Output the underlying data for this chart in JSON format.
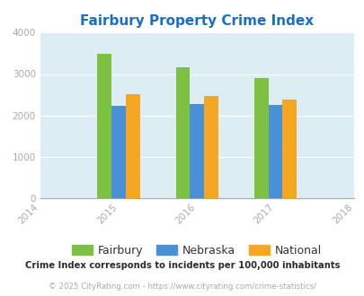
{
  "title": "Fairbury Property Crime Index",
  "years": [
    2015,
    2016,
    2017
  ],
  "fairbury": [
    3490,
    3160,
    2910
  ],
  "nebraska": [
    2230,
    2265,
    2255
  ],
  "national": [
    2520,
    2460,
    2375
  ],
  "bar_colors": {
    "fairbury": "#7dc142",
    "nebraska": "#4a90d9",
    "national": "#f5a623"
  },
  "xlim": [
    2014,
    2018
  ],
  "ylim": [
    0,
    4000
  ],
  "yticks": [
    0,
    1000,
    2000,
    3000,
    4000
  ],
  "xticks": [
    2014,
    2015,
    2016,
    2017,
    2018
  ],
  "plot_bg": "#dceef3",
  "legend_labels": [
    "Fairbury",
    "Nebraska",
    "National"
  ],
  "footnote1": "Crime Index corresponds to incidents per 100,000 inhabitants",
  "footnote2": "© 2025 CityRating.com - https://www.cityrating.com/crime-statistics/",
  "title_color": "#1a6ec7",
  "footnote1_color": "#2c2c2c",
  "footnote2_color": "#aaaaaa",
  "bar_width": 0.18,
  "tick_color": "#aaaaaa"
}
